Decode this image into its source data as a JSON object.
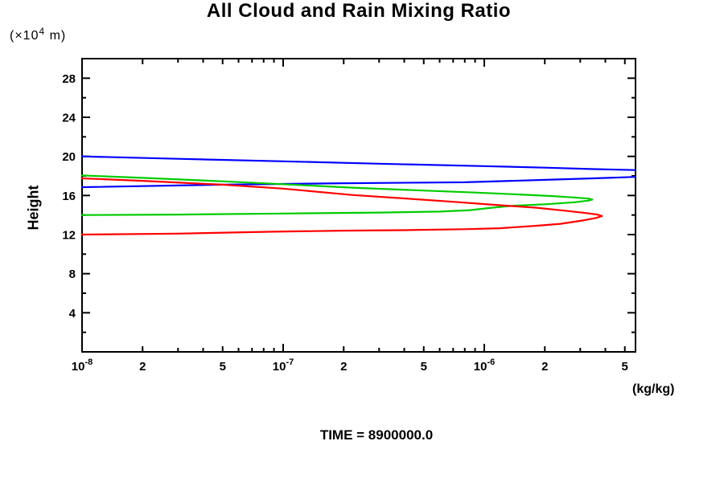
{
  "chart_data": {
    "type": "line",
    "title": "All Cloud and Rain Mixing Ratio",
    "footer": "TIME = 8900000.0",
    "grid": false,
    "legend": false,
    "x_axis": {
      "units_label": "(kg/kg)",
      "scale": "log",
      "lim": [
        1e-08,
        5.65e-06
      ],
      "decade_exponents": [
        -8,
        -7,
        -6
      ],
      "labeled_multiples": [
        2,
        5
      ],
      "minor_multiples": [
        3,
        4,
        6,
        7,
        8,
        9
      ]
    },
    "y_axis": {
      "label": "Height",
      "units_prefix": "(×10",
      "units_sup": "4",
      "units_suffix": " m)",
      "lim": [
        0,
        30
      ],
      "major_ticks": [
        4,
        8,
        12,
        16,
        20,
        24,
        28
      ],
      "minor_step": 2
    },
    "series": [
      {
        "name": "blue",
        "color": "#0000ff",
        "paths": [
          [
            [
              1e-08,
              20.0
            ],
            [
              3e-08,
              19.75
            ],
            [
              1e-07,
              19.5
            ],
            [
              3e-07,
              19.25
            ],
            [
              1e-06,
              19.0
            ],
            [
              2e-06,
              18.85
            ],
            [
              3.5e-06,
              18.7
            ],
            [
              5.65e-06,
              18.6
            ]
          ],
          [
            [
              1e-08,
              16.85
            ],
            [
              5e-08,
              17.1
            ],
            [
              2e-07,
              17.25
            ],
            [
              8e-07,
              17.35
            ],
            [
              2e-06,
              17.6
            ],
            [
              3.5e-06,
              17.75
            ],
            [
              5.65e-06,
              17.9
            ]
          ]
        ]
      },
      {
        "name": "green",
        "color": "#00cc00",
        "paths": [
          [
            [
              1e-08,
              18.05
            ],
            [
              2e-08,
              17.8
            ],
            [
              5e-08,
              17.45
            ],
            [
              1e-07,
              17.15
            ],
            [
              2.2e-07,
              16.8
            ],
            [
              5e-07,
              16.5
            ],
            [
              9e-07,
              16.3
            ],
            [
              1.5e-06,
              16.1
            ],
            [
              2.1e-06,
              15.95
            ],
            [
              2.8e-06,
              15.8
            ],
            [
              3.3e-06,
              15.68
            ],
            [
              3.45e-06,
              15.58
            ],
            [
              3.3e-06,
              15.48
            ],
            [
              2.8e-06,
              15.3
            ],
            [
              2e-06,
              15.1
            ],
            [
              1.4e-06,
              14.95
            ],
            [
              1.1e-06,
              14.75
            ],
            [
              8.5e-07,
              14.5
            ],
            [
              6e-07,
              14.35
            ],
            [
              3e-07,
              14.25
            ],
            [
              1e-07,
              14.15
            ],
            [
              3e-08,
              14.05
            ],
            [
              1e-08,
              14.0
            ]
          ]
        ]
      },
      {
        "name": "red",
        "color": "#ff0000",
        "paths": [
          [
            [
              1e-08,
              17.75
            ],
            [
              2e-08,
              17.5
            ],
            [
              5e-08,
              17.1
            ],
            [
              1e-07,
              16.7
            ],
            [
              2.2e-07,
              16.05
            ],
            [
              4e-07,
              15.7
            ],
            [
              7e-07,
              15.35
            ],
            [
              1.2e-06,
              15.0
            ],
            [
              1.8e-06,
              14.75
            ],
            [
              2.5e-06,
              14.45
            ],
            [
              3.2e-06,
              14.2
            ],
            [
              3.65e-06,
              14.05
            ],
            [
              3.85e-06,
              13.9
            ],
            [
              3.6e-06,
              13.7
            ],
            [
              3.1e-06,
              13.45
            ],
            [
              2.4e-06,
              13.1
            ],
            [
              1.8e-06,
              12.9
            ],
            [
              1.2e-06,
              12.65
            ],
            [
              8e-07,
              12.55
            ],
            [
              4e-07,
              12.45
            ],
            [
              2e-07,
              12.4
            ],
            [
              9e-08,
              12.3
            ],
            [
              3e-08,
              12.1
            ],
            [
              1e-08,
              12.0
            ]
          ]
        ]
      }
    ]
  }
}
